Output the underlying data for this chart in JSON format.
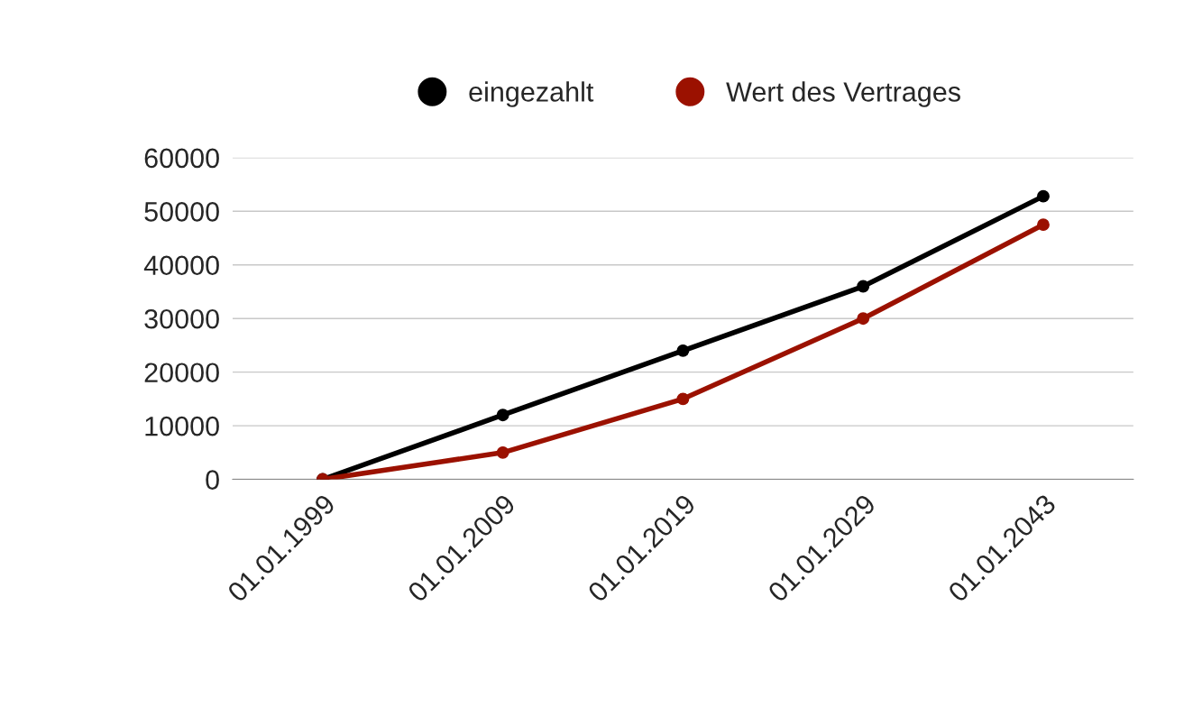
{
  "chart_data": {
    "type": "line",
    "categories": [
      "01.01.1999",
      "01.01.2009",
      "01.01.2019",
      "01.01.2029",
      "01.01.2043"
    ],
    "series": [
      {
        "name": "eingezahlt",
        "color": "#000000",
        "values": [
          0,
          12000,
          24000,
          36000,
          52800
        ]
      },
      {
        "name": "Wert des Vertrages",
        "color": "#9b1100",
        "values": [
          0,
          5000,
          15000,
          30000,
          47500
        ]
      }
    ],
    "ylim": [
      0,
      60000
    ],
    "yticks": [
      0,
      10000,
      20000,
      30000,
      40000,
      50000,
      60000
    ],
    "grid": "y",
    "legend": "top",
    "marker": "circle",
    "line_style": "solid"
  }
}
